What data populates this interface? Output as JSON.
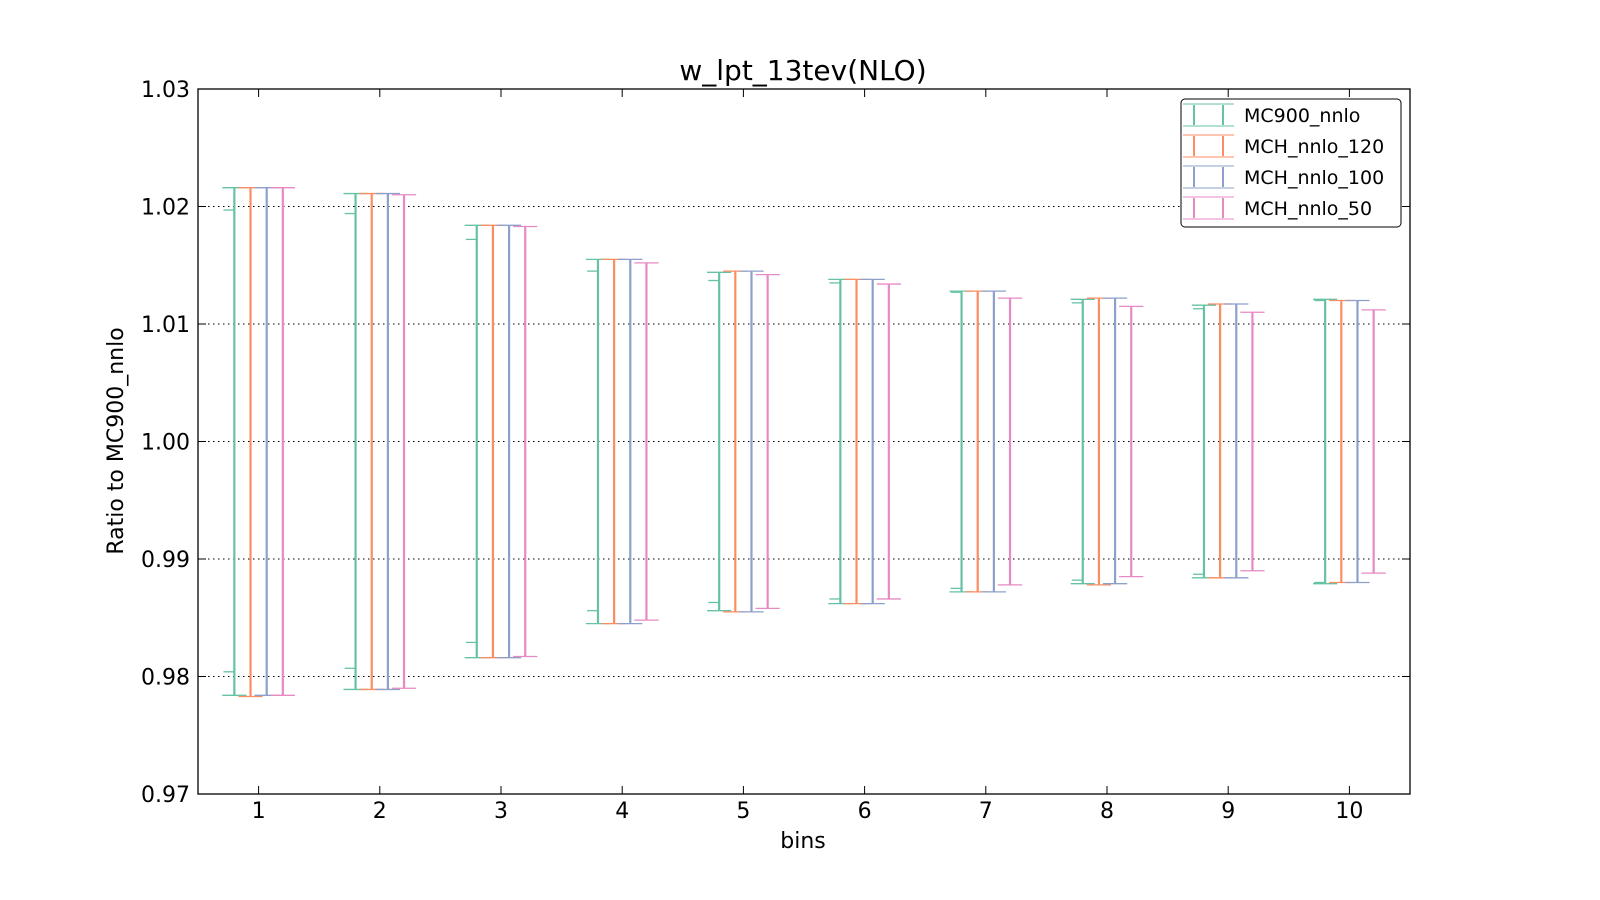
{
  "chart_data": {
    "type": "errorbar",
    "title": "w_lpt_13tev(NLO)",
    "xlabel": "bins",
    "ylabel": "Ratio to MC900_nnlo",
    "ylim": [
      0.97,
      1.03
    ],
    "yticks": [
      0.97,
      0.98,
      0.99,
      1.0,
      1.01,
      1.02,
      1.03
    ],
    "ytick_labels": [
      "0.97",
      "0.98",
      "0.99",
      "1.00",
      "1.01",
      "1.02",
      "1.03"
    ],
    "x": [
      1,
      2,
      3,
      4,
      5,
      6,
      7,
      8,
      9,
      10
    ],
    "xtick_labels": [
      "1",
      "2",
      "3",
      "4",
      "5",
      "6",
      "7",
      "8",
      "9",
      "10"
    ],
    "grid": "y-dotted",
    "legend": "top-right",
    "series": [
      {
        "name": "MC900_nnlo",
        "color": "#66c2a5",
        "lower": [
          0.9784,
          0.9789,
          0.9816,
          0.9845,
          0.9856,
          0.9862,
          0.9872,
          0.9879,
          0.9884,
          0.9879
        ],
        "upper": [
          1.0216,
          1.0211,
          1.0184,
          1.0155,
          1.0144,
          1.0138,
          1.0128,
          1.0121,
          1.0116,
          1.0121
        ],
        "inner_lower": [
          0.9804,
          0.9807,
          0.9829,
          0.9856,
          0.9863,
          0.9866,
          0.9875,
          0.9882,
          0.9887,
          0.988
        ],
        "inner_upper": [
          1.0197,
          1.0194,
          1.0172,
          1.0145,
          1.0137,
          1.0135,
          1.0127,
          1.0118,
          1.0113,
          1.012
        ]
      },
      {
        "name": "MCH_nnlo_120",
        "color": "#fc8d62",
        "lower": [
          0.9783,
          0.9789,
          0.9816,
          0.9845,
          0.9855,
          0.9862,
          0.9872,
          0.9878,
          0.9884,
          0.988
        ],
        "upper": [
          1.0216,
          1.0211,
          1.0184,
          1.0155,
          1.0145,
          1.0138,
          1.0128,
          1.0122,
          1.0117,
          1.012
        ]
      },
      {
        "name": "MCH_nnlo_100",
        "color": "#8da0cb",
        "lower": [
          0.9784,
          0.9789,
          0.9816,
          0.9845,
          0.9855,
          0.9862,
          0.9872,
          0.9879,
          0.9884,
          0.988
        ],
        "upper": [
          1.0216,
          1.0211,
          1.0184,
          1.0155,
          1.0145,
          1.0138,
          1.0128,
          1.0122,
          1.0117,
          1.012
        ]
      },
      {
        "name": "MCH_nnlo_50",
        "color": "#e78ac3",
        "lower": [
          0.9784,
          0.979,
          0.9817,
          0.9848,
          0.9858,
          0.9866,
          0.9878,
          0.9885,
          0.989,
          0.9888
        ],
        "upper": [
          1.0216,
          1.021,
          1.0183,
          1.0152,
          1.0142,
          1.0134,
          1.0122,
          1.0115,
          1.011,
          1.0112
        ]
      }
    ]
  }
}
